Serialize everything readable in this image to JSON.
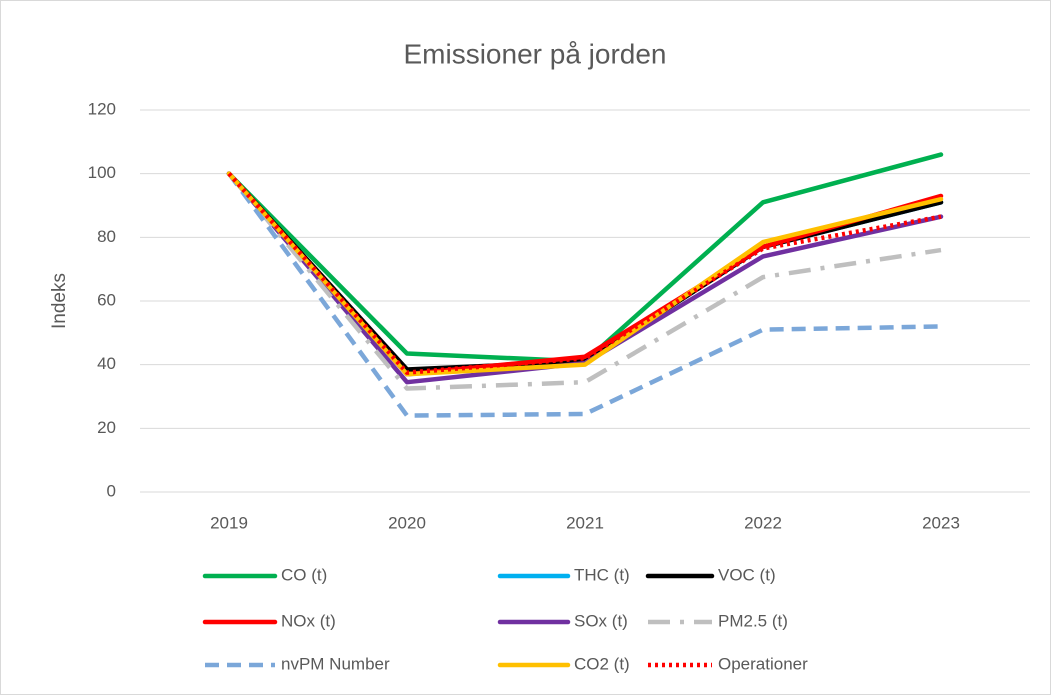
{
  "chart_data": {
    "type": "line",
    "title": "Emissioner på jorden",
    "y_label": "Indeks",
    "categories": [
      "2019",
      "2020",
      "2021",
      "2022",
      "2023"
    ],
    "ylim": [
      0,
      120
    ],
    "yticks": [
      0,
      20,
      40,
      60,
      80,
      100,
      120
    ],
    "grid": true,
    "legend": "bottom",
    "series": [
      {
        "name": "CO (t)",
        "color": "#00b050",
        "style": "solid",
        "values": [
          100,
          43.5,
          41,
          91,
          106
        ]
      },
      {
        "name": "THC (t)",
        "color": "#00b0f0",
        "style": "solid",
        "values": [
          100,
          37,
          41,
          77,
          91
        ]
      },
      {
        "name": "VOC (t)",
        "color": "#000000",
        "style": "solid",
        "values": [
          100,
          38.5,
          41,
          77,
          91
        ]
      },
      {
        "name": "NOx (t)",
        "color": "#ff0000",
        "style": "solid",
        "values": [
          100,
          37,
          42.5,
          77,
          93
        ]
      },
      {
        "name": "SOx (t)",
        "color": "#7030a0",
        "style": "solid",
        "values": [
          100,
          34.5,
          40.5,
          74,
          86.5
        ]
      },
      {
        "name": "PM2.5 (t)",
        "color": "#bfbfbf",
        "style": "dashdot",
        "values": [
          100,
          32.5,
          34.5,
          67.5,
          76
        ]
      },
      {
        "name": "nvPM Number",
        "color": "#7ba7d9",
        "style": "dash",
        "values": [
          100,
          24,
          24.5,
          51,
          52
        ]
      },
      {
        "name": "CO2 (t)",
        "color": "#ffc000",
        "style": "solid",
        "values": [
          100,
          37,
          40,
          78.5,
          92
        ]
      },
      {
        "name": "Operationer",
        "color": "#ff0000",
        "style": "dot",
        "values": [
          100,
          37.5,
          42,
          76.5,
          86.5
        ]
      }
    ]
  }
}
